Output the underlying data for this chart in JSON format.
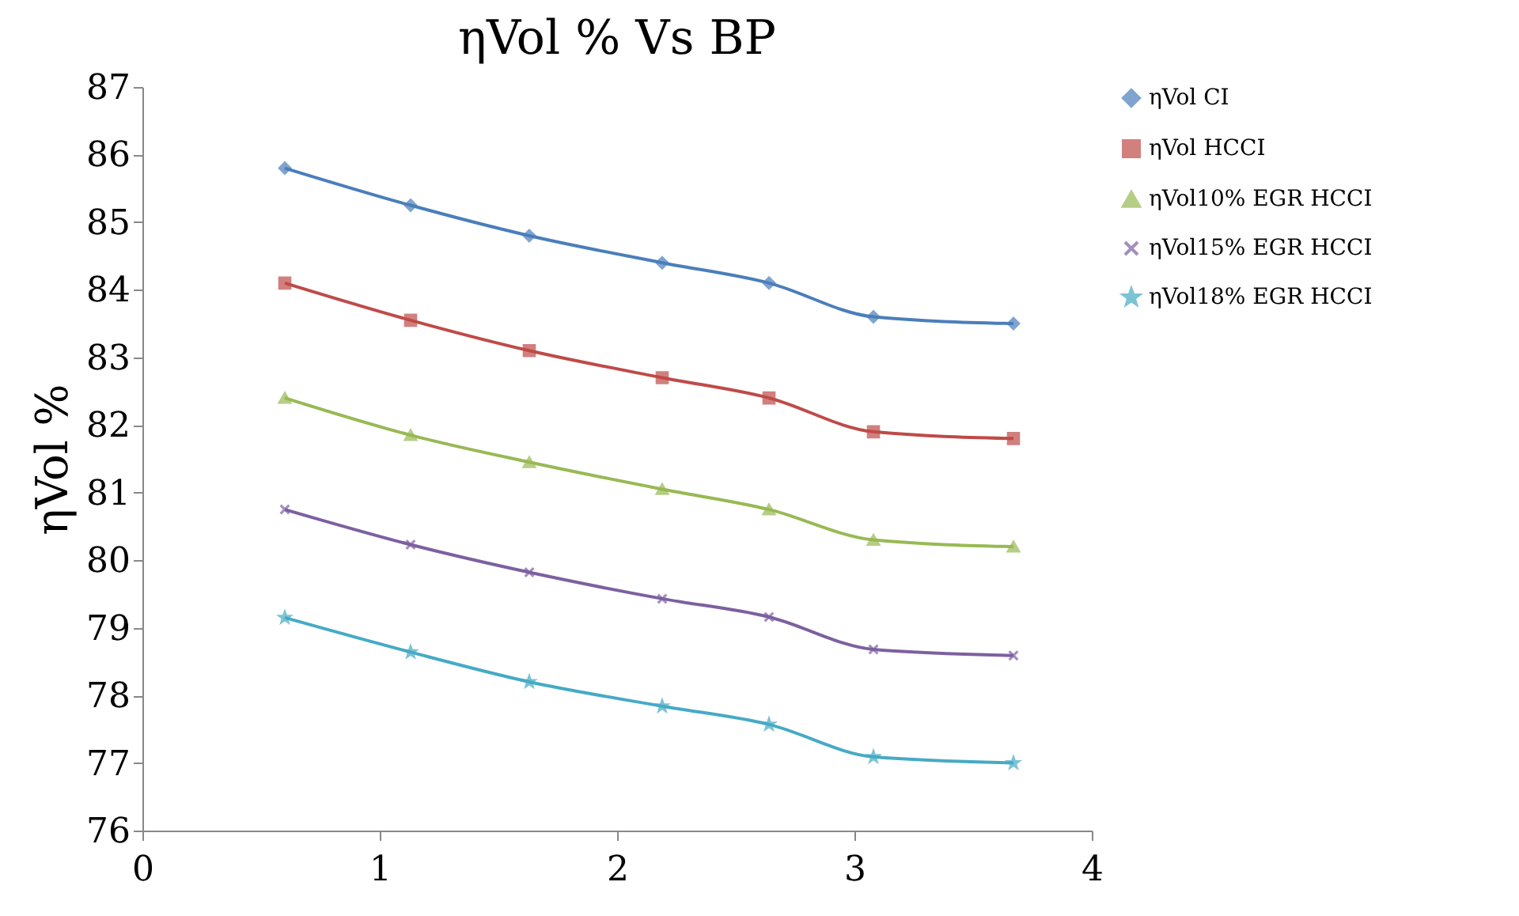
{
  "chart_data": {
    "type": "line",
    "title": "ηVol % Vs BP",
    "ylabel": "ηVol %",
    "x": [
      0.6,
      1.13,
      1.63,
      2.19,
      2.64,
      3.08,
      3.67
    ],
    "xlim": [
      0,
      4
    ],
    "xticks": [
      0,
      1,
      2,
      3,
      4
    ],
    "ylim": [
      76,
      87
    ],
    "yticks": [
      76,
      77,
      78,
      79,
      80,
      81,
      82,
      83,
      84,
      85,
      86,
      87
    ],
    "grid": false,
    "legend": "right",
    "series": [
      {
        "name": "ηVol CI",
        "color": "#4a7ebb",
        "marker": "diamond",
        "values": [
          85.8,
          85.25,
          84.8,
          84.4,
          84.1,
          83.6,
          83.5
        ]
      },
      {
        "name": "ηVol HCCI",
        "color": "#be4b48",
        "marker": "square",
        "values": [
          84.1,
          83.55,
          83.1,
          82.7,
          82.4,
          81.9,
          81.8
        ]
      },
      {
        "name": "ηVol10%  EGR HCCI",
        "color": "#98b954",
        "marker": "triangle",
        "values": [
          82.4,
          81.85,
          81.45,
          81.05,
          80.75,
          80.3,
          80.2
        ]
      },
      {
        "name": "ηVol15%  EGR HCCI",
        "color": "#7d60a0",
        "marker": "cross",
        "values": [
          80.75,
          80.23,
          79.82,
          79.43,
          79.16,
          78.68,
          78.59
        ]
      },
      {
        "name": "ηVol18%  EGR HCCI",
        "color": "#46aac5",
        "marker": "star",
        "values": [
          79.15,
          78.64,
          78.2,
          77.84,
          77.57,
          77.09,
          77.0
        ]
      }
    ]
  }
}
